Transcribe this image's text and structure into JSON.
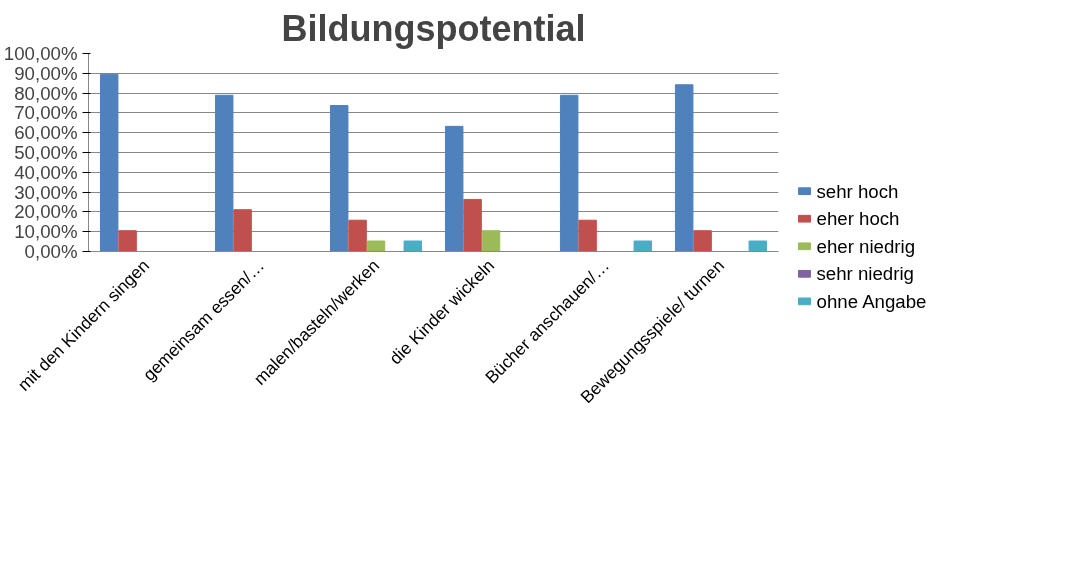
{
  "chart_data": {
    "type": "bar",
    "title": "Bildungspotential",
    "categories": [
      "mit den Kindern singen",
      "gemeinsam essen/…",
      "malen/basteln/werken",
      "die Kinder wickeln",
      "Bücher anschauen/…",
      "Bewegungsspiele/ turnen"
    ],
    "series": [
      {
        "name": "sehr hoch",
        "color": "#4f81bd",
        "values": [
          89.5,
          78.9,
          73.7,
          63.2,
          78.9,
          84.2
        ]
      },
      {
        "name": "eher hoch",
        "color": "#c0504d",
        "values": [
          10.5,
          21.1,
          15.8,
          26.3,
          15.8,
          10.5
        ]
      },
      {
        "name": "eher niedrig",
        "color": "#9bbb59",
        "values": [
          0,
          0,
          5.3,
          10.5,
          0,
          0
        ]
      },
      {
        "name": "sehr niedrig",
        "color": "#8064a2",
        "values": [
          0,
          0,
          0,
          0,
          0,
          0
        ]
      },
      {
        "name": "ohne Angabe",
        "color": "#4bacc6",
        "values": [
          0,
          0,
          5.3,
          0,
          5.3,
          5.3
        ]
      }
    ],
    "ylim": [
      0,
      100
    ],
    "yticks": [
      {
        "value": 0,
        "label": "0,00%"
      },
      {
        "value": 10,
        "label": "10,00%"
      },
      {
        "value": 20,
        "label": "20,00%"
      },
      {
        "value": 30,
        "label": "30,00%"
      },
      {
        "value": 40,
        "label": "40,00%"
      },
      {
        "value": 50,
        "label": "50,00%"
      },
      {
        "value": 60,
        "label": "60,00%"
      },
      {
        "value": 70,
        "label": "70,00%"
      },
      {
        "value": 80,
        "label": "80,00%"
      },
      {
        "value": 90,
        "label": "90,00%"
      },
      {
        "value": 100,
        "label": "100,00%"
      }
    ],
    "grid": "y",
    "legend": "right"
  }
}
